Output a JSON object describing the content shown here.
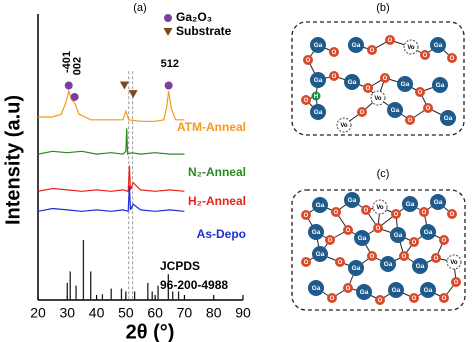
{
  "chart_data": {
    "type": "line",
    "title": "(a)",
    "x_label": "2θ (°)",
    "y_label": "Intensity (a.u)",
    "xlim": [
      20,
      90
    ],
    "xticks": [
      20,
      30,
      40,
      50,
      60,
      70,
      80,
      90
    ],
    "ylim": [
      0,
      100
    ],
    "grid": false,
    "series": [
      {
        "name": "ATM-Anneal",
        "color": "#f39a1e",
        "x": [
          20,
          25,
          28,
          29.5,
          30.5,
          31.5,
          32.5,
          34,
          38,
          45,
          49,
          50,
          51,
          55,
          60,
          63,
          64,
          64.6,
          65.5,
          67,
          70
        ],
        "values": [
          64,
          64,
          65,
          69,
          73,
          70,
          69,
          65,
          63,
          63,
          63,
          66,
          63,
          62.5,
          62.5,
          63,
          68,
          73,
          67,
          63,
          63
        ]
      },
      {
        "name": "N₂-Anneal",
        "color": "#2a8a1f",
        "x": [
          20,
          25,
          30,
          35,
          40,
          45,
          49,
          50,
          50.3,
          50.6,
          52,
          55,
          60,
          65,
          70
        ],
        "values": [
          51,
          52,
          51.5,
          52,
          51,
          51.5,
          51,
          52,
          60,
          51,
          51.5,
          51,
          51.5,
          51,
          51
        ]
      },
      {
        "name": "H₂-Anneal",
        "color": "#e8231c",
        "x": [
          20,
          25,
          30,
          35,
          40,
          45,
          49,
          50.8,
          51.2,
          51.6,
          52.5,
          55,
          60,
          65,
          70
        ],
        "values": [
          38,
          39,
          38.5,
          38,
          38.5,
          38,
          38.5,
          38,
          47,
          38.5,
          41,
          38.5,
          38,
          38.5,
          38
        ]
      },
      {
        "name": "As-Depo",
        "color": "#1d2fd6",
        "x": [
          20,
          25,
          30,
          35,
          40,
          45,
          49,
          50.8,
          51.2,
          51.6,
          52.5,
          55,
          60,
          65,
          70
        ],
        "values": [
          31,
          32,
          31.5,
          31,
          31.5,
          31,
          31.5,
          31,
          40,
          31.5,
          33.5,
          31.5,
          31,
          31.5,
          31
        ]
      }
    ],
    "reference": {
      "name": "JCPDS",
      "code": "96-200-4988",
      "color": "#222222",
      "x": [
        30,
        31,
        33,
        35.5,
        38,
        42,
        45,
        48.5,
        50,
        53,
        57.5,
        59,
        61,
        64.5,
        66,
        68
      ],
      "values": [
        6,
        10,
        5,
        21,
        10,
        2,
        4,
        4,
        3,
        3,
        6,
        3,
        5,
        9,
        3,
        3
      ]
    },
    "markers": [
      {
        "name": "Ga₂O₃",
        "color": "#7b3fa0",
        "shape": "circle",
        "x": [
          30.5,
          32.5,
          64.6
        ],
        "values": [
          75,
          71,
          75
        ]
      },
      {
        "name": "Substrate",
        "color": "#7a4a1e",
        "shape": "triangle",
        "x": [
          49.5,
          52.5
        ],
        "values": [
          75,
          72
        ]
      }
    ],
    "annotations": [
      "-401",
      "002",
      "512"
    ],
    "reference_lines": [
      51,
      52.3
    ]
  },
  "diagram_b": {
    "label": "(b)",
    "atoms": [
      "Ga",
      "O",
      "O",
      "Ga",
      "O",
      "O",
      "Vo",
      "O",
      "Ga",
      "O",
      "Ga",
      "O",
      "Ga",
      "O",
      "O",
      "Ga",
      "O",
      "Ga",
      "O",
      "Ga",
      "H",
      "Vo",
      "O",
      "Vo",
      "Ga",
      "O",
      "O",
      "Ga"
    ]
  },
  "diagram_c": {
    "label": "(c)",
    "atoms": [
      "O",
      "Ga",
      "O",
      "Ga",
      "O",
      "Vo",
      "O",
      "Ga",
      "O",
      "Ga",
      "O",
      "Ga",
      "O",
      "O",
      "Ga",
      "O",
      "Ga",
      "O",
      "Ga",
      "O",
      "O",
      "Ga",
      "O",
      "Ga",
      "O",
      "Ga",
      "O",
      "Ga",
      "Vo",
      "O",
      "Ga",
      "O",
      "O",
      "Ga",
      "O",
      "Ga",
      "O",
      "Ga",
      "O",
      "O"
    ]
  }
}
